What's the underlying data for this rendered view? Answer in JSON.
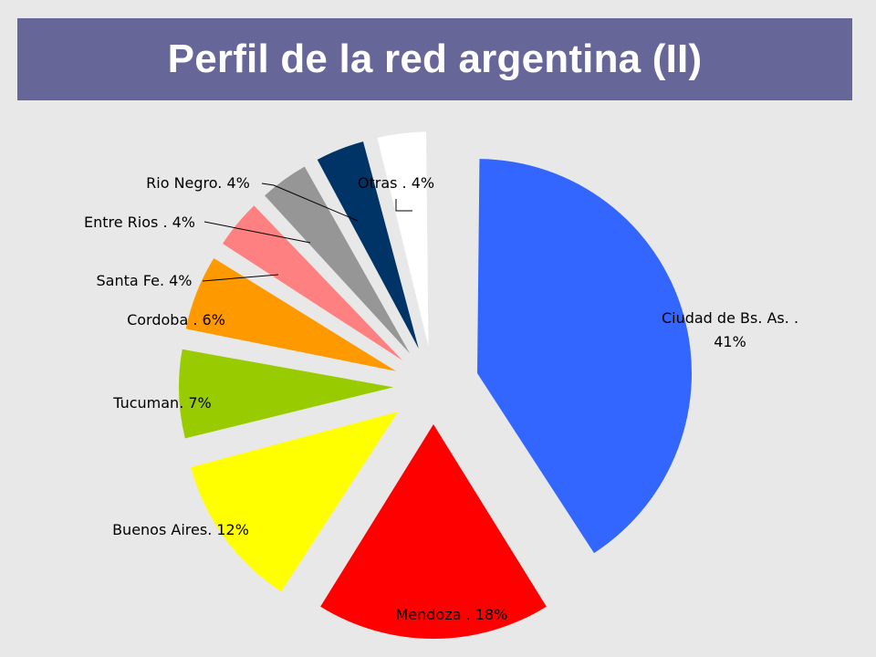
{
  "slide": {
    "title": "Perfil de la red argentina (II)",
    "colors": {
      "background": "#e8e8e8",
      "title_bar": "#666699",
      "title_text": "#ffffff"
    }
  },
  "chart_data": {
    "type": "pie",
    "exploded": true,
    "legend": "none",
    "categories": [
      "Ciudad de Bs. As.",
      "Mendoza",
      "Buenos Aires",
      "Tucuman",
      "Cordoba",
      "Santa Fe",
      "Entre Rios",
      "Rio Negro",
      "Otras"
    ],
    "values": [
      41,
      18,
      12,
      7,
      6,
      4,
      4,
      4,
      4
    ],
    "value_suffix": "%",
    "colors": [
      "#3366ff",
      "#ff0000",
      "#ffff00",
      "#99cc00",
      "#ff9900",
      "#ff8080",
      "#969696",
      "#003366",
      "#ffffff"
    ],
    "labels": [
      {
        "line1": "Ciudad de Bs. As. .",
        "line2": "41%"
      },
      {
        "line1": "Mendoza . 18%"
      },
      {
        "line1": "Buenos Aires. 12%"
      },
      {
        "line1": "Tucuman. 7%"
      },
      {
        "line1": "Cordoba . 6%"
      },
      {
        "line1": "Santa Fe. 4%"
      },
      {
        "line1": "Entre Rios . 4%"
      },
      {
        "line1": "Rio Negro. 4%"
      },
      {
        "line1": "Otras . 4%"
      }
    ]
  }
}
